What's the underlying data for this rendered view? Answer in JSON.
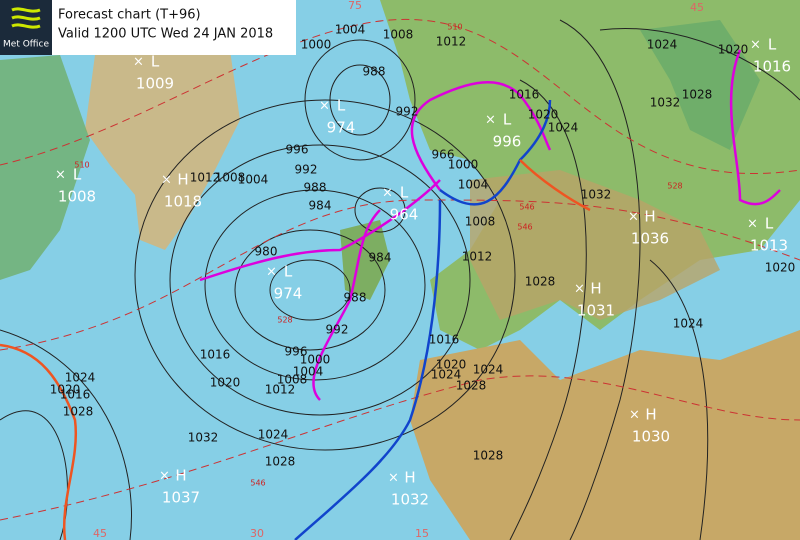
{
  "header": {
    "logo": "Met Office",
    "title": "Forecast chart (T+96)",
    "valid": "Valid 1200 UTC Wed 24 JAN 2018"
  },
  "pressure_centers": [
    {
      "type": "L",
      "value": 1009
    },
    {
      "type": "L",
      "value": 1008
    },
    {
      "type": "H",
      "value": 1018
    },
    {
      "type": "L",
      "value": 974
    },
    {
      "type": "L",
      "value": 996
    },
    {
      "type": "L",
      "value": 964
    },
    {
      "type": "L",
      "value": 974
    },
    {
      "type": "H",
      "value": 1031
    },
    {
      "type": "H",
      "value": 1036
    },
    {
      "type": "L",
      "value": 1013
    },
    {
      "type": "L",
      "value": 1016
    },
    {
      "type": "H",
      "value": 1030
    },
    {
      "type": "H",
      "value": 1037
    },
    {
      "type": "H",
      "value": 1032
    }
  ],
  "isobar_labels": [
    1004,
    1000,
    1008,
    1012,
    1024,
    1020,
    1028,
    1032,
    988,
    992,
    996,
    992,
    988,
    984,
    1004,
    1008,
    1012,
    980,
    984,
    988,
    992,
    996,
    1000,
    1004,
    1008,
    1012,
    1016,
    1020,
    1024,
    1028,
    1032,
    1016,
    1020,
    1024,
    1028,
    1024,
    1028,
    1032,
    1028,
    1024,
    1020,
    1016,
    1020,
    1024,
    1028,
    966,
    1000,
    1004,
    1008,
    1012,
    1016,
    1020,
    1024
  ],
  "thickness_labels": [
    510,
    510,
    528,
    546,
    528,
    546,
    546
  ],
  "graticule_labels": [
    45,
    30,
    15,
    75,
    45
  ]
}
